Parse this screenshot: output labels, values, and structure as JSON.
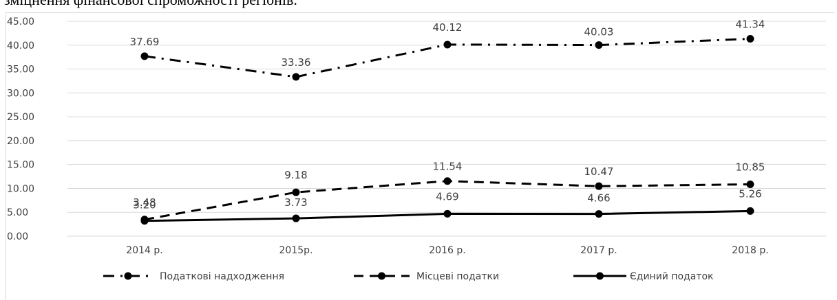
{
  "caption": "зміцнення фінансової спроможності регіонів.",
  "chart_data": {
    "type": "line",
    "categories": [
      "2014 р.",
      "2015р.",
      "2016 р.",
      "2017 р.",
      "2018 р."
    ],
    "ylim": [
      0,
      45
    ],
    "yticks": [
      "0.00",
      "5.00",
      "10.00",
      "15.00",
      "20.00",
      "25.00",
      "30.00",
      "35.00",
      "40.00",
      "45.00"
    ],
    "grid": true,
    "legend_position": "bottom",
    "series": [
      {
        "name": "Податкові надходження",
        "values": [
          37.69,
          33.36,
          40.12,
          40.03,
          41.34
        ],
        "labels": [
          "37.69",
          "33.36",
          "40.12",
          "40.03",
          "41.34"
        ],
        "line_style": "dash-dot",
        "color": "#000000"
      },
      {
        "name": "Місцеві податки",
        "values": [
          3.48,
          9.18,
          11.54,
          10.47,
          10.85
        ],
        "labels": [
          "3.48",
          "9.18",
          "11.54",
          "10.47",
          "10.85"
        ],
        "line_style": "dashed",
        "color": "#000000"
      },
      {
        "name": "Єдиний податок",
        "values": [
          3.2,
          3.73,
          4.69,
          4.66,
          5.26
        ],
        "labels": [
          "3.20",
          "3.73",
          "4.69",
          "4.66",
          "5.26"
        ],
        "line_style": "solid",
        "color": "#000000"
      }
    ]
  },
  "colors": {
    "gridline": "#d9d9d9",
    "text": "#404040",
    "series": "#000000"
  }
}
